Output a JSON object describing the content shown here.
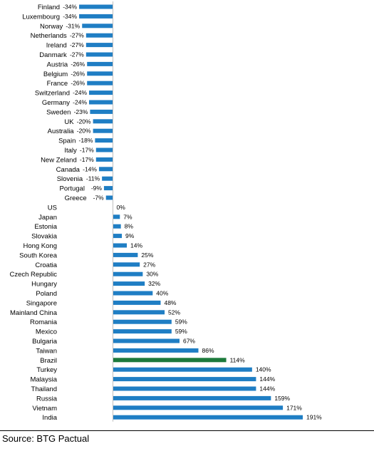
{
  "chart_data": {
    "type": "bar",
    "orientation": "horizontal",
    "categories": [
      "Finland",
      "Luxembourg",
      "Norway",
      "Netherlands",
      "Ireland",
      "Danmark",
      "Austria",
      "Belgium",
      "France",
      "Switzerland",
      "Germany",
      "Sweden",
      "UK",
      "Australia",
      "Spain",
      "Italy",
      "New Zeland",
      "Canada",
      "Slovenia",
      "Portugal",
      "Greece",
      "US",
      "Japan",
      "Estonia",
      "Slovakia",
      "Hong Kong",
      "South Korea",
      "Croatia",
      "Czech Republic",
      "Hungary",
      "Poland",
      "Singapore",
      "Mainland China",
      "Romania",
      "Mexico",
      "Bulgaria",
      "Taiwan",
      "Brazil",
      "Turkey",
      "Malaysia",
      "Thailand",
      "Russia",
      "Vietnam",
      "India"
    ],
    "values": [
      -34,
      -34,
      -31,
      -27,
      -27,
      -27,
      -26,
      -26,
      -26,
      -24,
      -24,
      -23,
      -20,
      -20,
      -18,
      -17,
      -17,
      -14,
      -11,
      -9,
      -7,
      0,
      7,
      8,
      9,
      14,
      25,
      27,
      30,
      32,
      40,
      48,
      52,
      59,
      59,
      67,
      86,
      114,
      140,
      144,
      144,
      159,
      171,
      191
    ],
    "value_labels": [
      "-34%",
      "-34%",
      "-31%",
      "-27%",
      "-27%",
      "-27%",
      "-26%",
      "-26%",
      "-26%",
      "-24%",
      "-24%",
      "-23%",
      "-20%",
      "-20%",
      "-18%",
      "-17%",
      "-17%",
      "-14%",
      "-11%",
      "-9%",
      "-7%",
      "0%",
      "7%",
      "8%",
      "9%",
      "14%",
      "25%",
      "27%",
      "30%",
      "32%",
      "40%",
      "48%",
      "52%",
      "59%",
      "59%",
      "67%",
      "86%",
      "114%",
      "140%",
      "144%",
      "144%",
      "159%",
      "171%",
      "191%"
    ],
    "unit": "%",
    "highlight": "Brazil",
    "colors": {
      "default": "#1f7ec4",
      "highlight": "#1c7a3c"
    },
    "xlim": [
      -34,
      191
    ],
    "grid": false,
    "legend": "none"
  },
  "footer": {
    "source": "Source: BTG Pactual"
  }
}
